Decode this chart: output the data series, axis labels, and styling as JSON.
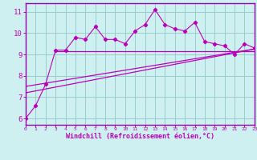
{
  "xlabel": "Windchill (Refroidissement éolien,°C)",
  "bg_color": "#cff0f0",
  "line_color": "#bb00bb",
  "grid_color": "#99cccc",
  "xdata": [
    0,
    1,
    2,
    3,
    4,
    5,
    6,
    7,
    8,
    9,
    10,
    11,
    12,
    13,
    14,
    15,
    16,
    17,
    18,
    19,
    20,
    21,
    22,
    23
  ],
  "ydata": [
    6.0,
    6.6,
    7.6,
    9.2,
    9.2,
    9.8,
    9.7,
    10.3,
    9.7,
    9.7,
    9.5,
    10.1,
    10.4,
    11.1,
    10.4,
    10.2,
    10.1,
    10.5,
    9.6,
    9.5,
    9.4,
    9.0,
    9.5,
    9.3
  ],
  "line1_x": [
    0,
    23
  ],
  "line1_y": [
    7.5,
    9.25
  ],
  "line2_x": [
    0,
    23
  ],
  "line2_y": [
    7.2,
    9.25
  ],
  "hline_y": 9.15,
  "hline_x0": 3,
  "hline_x1": 23,
  "xlim": [
    0,
    23
  ],
  "ylim": [
    5.7,
    11.4
  ],
  "yticks": [
    6,
    7,
    8,
    9,
    10,
    11
  ],
  "xticks": [
    0,
    1,
    2,
    3,
    4,
    5,
    6,
    7,
    8,
    9,
    10,
    11,
    12,
    13,
    14,
    15,
    16,
    17,
    18,
    19,
    20,
    21,
    22,
    23
  ],
  "spine_color": "#9900aa"
}
